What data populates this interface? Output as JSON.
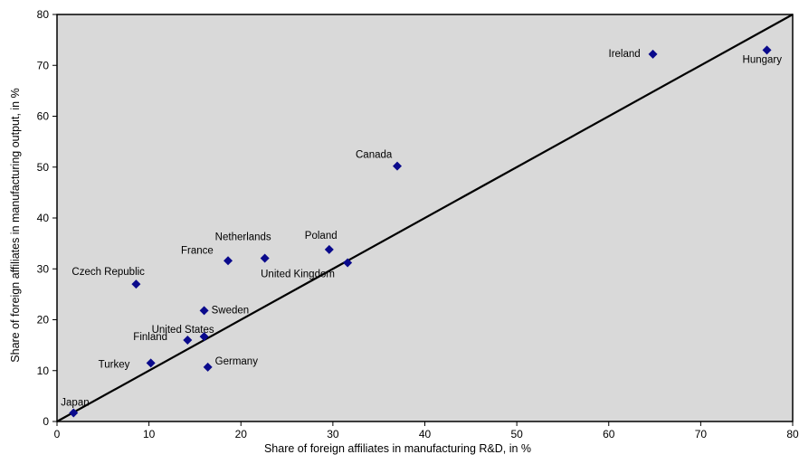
{
  "chart_data": {
    "type": "scatter",
    "title": "",
    "xlabel": "Share of foreign affiliates in manufacturing R&D, in %",
    "ylabel": "Share of foreign affiliates in manufacturing output, in %",
    "xlim": [
      0,
      80
    ],
    "ylim": [
      0,
      80
    ],
    "xticks": [
      "0",
      "10",
      "20",
      "30",
      "40",
      "50",
      "60",
      "70",
      "80"
    ],
    "yticks": [
      "0",
      "10",
      "20",
      "30",
      "40",
      "50",
      "60",
      "70",
      "80"
    ],
    "grid": false,
    "legend": "none",
    "plot_background": "#d9d9d9",
    "marker_color": "#0a0a8c",
    "reference_line": {
      "from": [
        0,
        0
      ],
      "to": [
        80,
        80
      ]
    },
    "points": [
      {
        "label": "Japan",
        "x": 1.8,
        "y": 1.7
      },
      {
        "label": "Turkey",
        "x": 10.2,
        "y": 11.5
      },
      {
        "label": "Finland",
        "x": 14.2,
        "y": 16.0
      },
      {
        "label": "United States",
        "x": 16.0,
        "y": 16.7
      },
      {
        "label": "Germany",
        "x": 16.4,
        "y": 10.7
      },
      {
        "label": "Sweden",
        "x": 16.0,
        "y": 21.8
      },
      {
        "label": "Czech Republic",
        "x": 8.6,
        "y": 27.0
      },
      {
        "label": "France",
        "x": 18.6,
        "y": 31.6
      },
      {
        "label": "Netherlands",
        "x": 22.6,
        "y": 32.1
      },
      {
        "label": "Poland",
        "x": 29.6,
        "y": 33.8
      },
      {
        "label": "United Kingdom",
        "x": 31.6,
        "y": 31.2
      },
      {
        "label": "Canada",
        "x": 37.0,
        "y": 50.2
      },
      {
        "label": "Ireland",
        "x": 64.8,
        "y": 72.2
      },
      {
        "label": "Hungary",
        "x": 77.2,
        "y": 73.0
      }
    ]
  }
}
